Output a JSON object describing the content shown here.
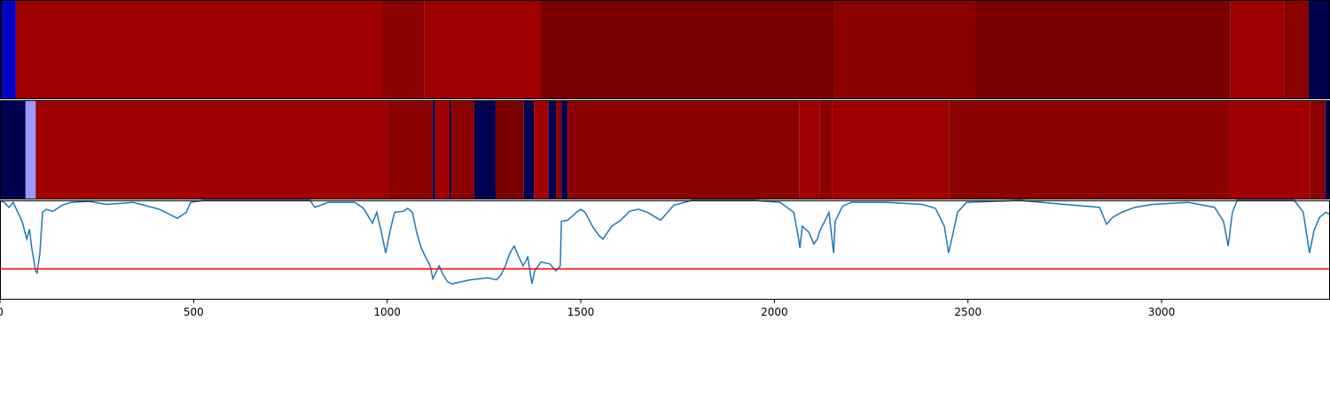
{
  "chart_data": [
    {
      "type": "strip",
      "xlim": [
        0,
        3435
      ],
      "segments": [
        {
          "start": 0,
          "end": 11,
          "color": "#000090"
        },
        {
          "start": 11,
          "end": 41,
          "color": "#0000c8"
        },
        {
          "start": 41,
          "end": 987,
          "color": "#9e0000"
        },
        {
          "start": 987,
          "end": 1095,
          "color": "#8b0000"
        },
        {
          "start": 1095,
          "end": 1397,
          "color": "#9e0000"
        },
        {
          "start": 1397,
          "end": 2157,
          "color": "#7a0000"
        },
        {
          "start": 2157,
          "end": 2519,
          "color": "#8b0000"
        },
        {
          "start": 2519,
          "end": 3178,
          "color": "#7a0000"
        },
        {
          "start": 3178,
          "end": 3318,
          "color": "#9e0000"
        },
        {
          "start": 3318,
          "end": 3380,
          "color": "#8b0000"
        },
        {
          "start": 3380,
          "end": 3435,
          "color": "#000050"
        }
      ]
    },
    {
      "type": "strip",
      "xlim": [
        0,
        3435
      ],
      "segments": [
        {
          "start": 0,
          "end": 66,
          "color": "#000050"
        },
        {
          "start": 66,
          "end": 92,
          "color": "#9999ff"
        },
        {
          "start": 92,
          "end": 1001,
          "color": "#a00000"
        },
        {
          "start": 1001,
          "end": 1117,
          "color": "#8b0000"
        },
        {
          "start": 1117,
          "end": 1124,
          "color": "#000050"
        },
        {
          "start": 1124,
          "end": 1161,
          "color": "#a00000"
        },
        {
          "start": 1161,
          "end": 1166,
          "color": "#000050"
        },
        {
          "start": 1166,
          "end": 1225,
          "color": "#8b0000"
        },
        {
          "start": 1225,
          "end": 1280,
          "color": "#000050"
        },
        {
          "start": 1280,
          "end": 1353,
          "color": "#7a0000"
        },
        {
          "start": 1353,
          "end": 1379,
          "color": "#000050"
        },
        {
          "start": 1379,
          "end": 1417,
          "color": "#a00000"
        },
        {
          "start": 1417,
          "end": 1436,
          "color": "#000050"
        },
        {
          "start": 1436,
          "end": 1450,
          "color": "#8b0000"
        },
        {
          "start": 1450,
          "end": 1466,
          "color": "#000050"
        },
        {
          "start": 1466,
          "end": 2065,
          "color": "#8b0000"
        },
        {
          "start": 2065,
          "end": 2118,
          "color": "#a00000"
        },
        {
          "start": 2118,
          "end": 2150,
          "color": "#8b0000"
        },
        {
          "start": 2150,
          "end": 2452,
          "color": "#a00000"
        },
        {
          "start": 2452,
          "end": 3174,
          "color": "#8b0000"
        },
        {
          "start": 3174,
          "end": 3384,
          "color": "#a00000"
        },
        {
          "start": 3384,
          "end": 3423,
          "color": "#8b0000"
        },
        {
          "start": 3423,
          "end": 3435,
          "color": "#000050"
        }
      ]
    },
    {
      "type": "line",
      "xlim": [
        0,
        3435
      ],
      "ylim": [
        0,
        1
      ],
      "xticks": [
        0,
        500,
        1000,
        1500,
        2000,
        2500,
        3000
      ],
      "x": [
        0,
        11,
        23,
        34,
        46,
        57,
        69,
        76,
        82,
        92,
        96,
        103,
        110,
        119,
        137,
        160,
        183,
        229,
        275,
        344,
        412,
        458,
        481,
        492,
        527,
        687,
        801,
        813,
        847,
        916,
        939,
        962,
        973,
        985,
        996,
        1008,
        1019,
        1042,
        1053,
        1065,
        1076,
        1088,
        1099,
        1111,
        1118,
        1134,
        1145,
        1156,
        1168,
        1191,
        1214,
        1237,
        1260,
        1282,
        1294,
        1305,
        1317,
        1328,
        1340,
        1351,
        1363,
        1374,
        1381,
        1397,
        1420,
        1436,
        1447,
        1450,
        1466,
        1489,
        1500,
        1511,
        1530,
        1546,
        1557,
        1580,
        1603,
        1626,
        1649,
        1672,
        1706,
        1740,
        1786,
        1947,
        2015,
        2050,
        2061,
        2066,
        2072,
        2089,
        2102,
        2111,
        2118,
        2130,
        2141,
        2153,
        2157,
        2176,
        2198,
        2290,
        2382,
        2416,
        2439,
        2450,
        2462,
        2473,
        2496,
        2634,
        2748,
        2840,
        2858,
        2874,
        2897,
        2931,
        2977,
        3069,
        3137,
        3160,
        3172,
        3183,
        3195,
        3343,
        3366,
        3382,
        3394,
        3408,
        3424,
        3435
      ],
      "series": [
        {
          "color": "#1f77b4",
          "values": [
            1.0,
            0.98,
            0.93,
            0.98,
            0.88,
            0.79,
            0.61,
            0.71,
            0.52,
            0.29,
            0.27,
            0.47,
            0.88,
            0.91,
            0.89,
            0.95,
            0.98,
            0.99,
            0.96,
            0.98,
            0.91,
            0.82,
            0.88,
            0.98,
            1.0,
            1.0,
            1.0,
            0.93,
            0.98,
            0.98,
            0.92,
            0.77,
            0.88,
            0.68,
            0.47,
            0.7,
            0.88,
            0.89,
            0.92,
            0.88,
            0.68,
            0.52,
            0.43,
            0.34,
            0.21,
            0.34,
            0.25,
            0.18,
            0.16,
            0.18,
            0.2,
            0.21,
            0.22,
            0.2,
            0.25,
            0.34,
            0.47,
            0.54,
            0.43,
            0.34,
            0.43,
            0.16,
            0.29,
            0.38,
            0.36,
            0.29,
            0.34,
            0.79,
            0.8,
            0.88,
            0.91,
            0.88,
            0.74,
            0.65,
            0.61,
            0.74,
            0.8,
            0.89,
            0.91,
            0.88,
            0.8,
            0.95,
            1.0,
            1.0,
            0.98,
            0.88,
            0.65,
            0.52,
            0.74,
            0.68,
            0.56,
            0.61,
            0.7,
            0.79,
            0.88,
            0.47,
            0.79,
            0.94,
            0.98,
            0.98,
            0.96,
            0.92,
            0.74,
            0.47,
            0.68,
            0.88,
            0.98,
            1.0,
            0.96,
            0.93,
            0.76,
            0.83,
            0.88,
            0.93,
            0.96,
            0.98,
            0.93,
            0.79,
            0.54,
            0.88,
            1.0,
            1.0,
            0.88,
            0.47,
            0.7,
            0.83,
            0.88,
            0.86
          ]
        }
      ],
      "hline": {
        "value": 0.31,
        "color": "#ff0000"
      }
    }
  ]
}
